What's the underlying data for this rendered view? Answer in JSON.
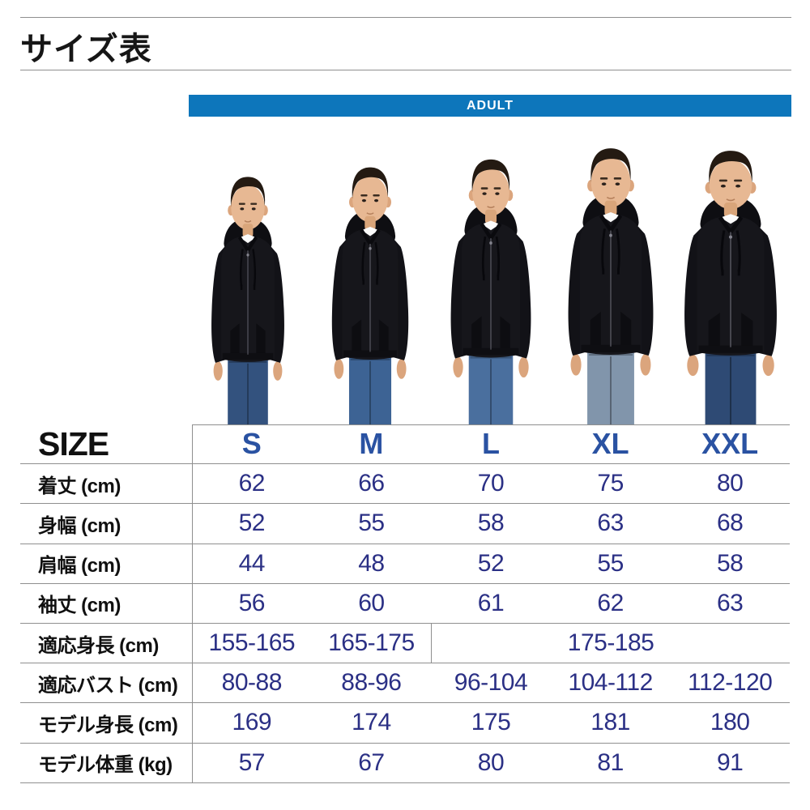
{
  "page": {
    "title": "サイズ表"
  },
  "banner": {
    "label": "ADULT",
    "bg_color": "#0d76bb",
    "text_color": "#ffffff"
  },
  "colors": {
    "size_header_blue": "#2a52a2",
    "value_navy": "#2b3085",
    "grid_line": "#8f8f8f"
  },
  "chart_data": {
    "type": "table",
    "title": "サイズ表",
    "group": "ADULT",
    "columns": [
      "S",
      "M",
      "L",
      "XL",
      "XXL"
    ],
    "rows": [
      {
        "label": "着丈 (cm)",
        "cells": [
          {
            "text": "62",
            "span": 1
          },
          {
            "text": "66",
            "span": 1
          },
          {
            "text": "70",
            "span": 1
          },
          {
            "text": "75",
            "span": 1
          },
          {
            "text": "80",
            "span": 1
          }
        ]
      },
      {
        "label": "身幅 (cm)",
        "cells": [
          {
            "text": "52",
            "span": 1
          },
          {
            "text": "55",
            "span": 1
          },
          {
            "text": "58",
            "span": 1
          },
          {
            "text": "63",
            "span": 1
          },
          {
            "text": "68",
            "span": 1
          }
        ]
      },
      {
        "label": "肩幅 (cm)",
        "cells": [
          {
            "text": "44",
            "span": 1
          },
          {
            "text": "48",
            "span": 1
          },
          {
            "text": "52",
            "span": 1
          },
          {
            "text": "55",
            "span": 1
          },
          {
            "text": "58",
            "span": 1
          }
        ]
      },
      {
        "label": "袖丈 (cm)",
        "cells": [
          {
            "text": "56",
            "span": 1
          },
          {
            "text": "60",
            "span": 1
          },
          {
            "text": "61",
            "span": 1
          },
          {
            "text": "62",
            "span": 1
          },
          {
            "text": "63",
            "span": 1
          }
        ]
      },
      {
        "label": "適応身長 (cm)",
        "cells": [
          {
            "text": "155-165",
            "span": 1
          },
          {
            "text": "165-175",
            "span": 1
          },
          {
            "text": "175-185",
            "span": 3,
            "divider": true
          }
        ]
      },
      {
        "label": "適応バスト (cm)",
        "cells": [
          {
            "text": "80-88",
            "span": 1
          },
          {
            "text": "88-96",
            "span": 1
          },
          {
            "text": "96-104",
            "span": 1
          },
          {
            "text": "104-112",
            "span": 1
          },
          {
            "text": "112-120",
            "span": 1
          }
        ]
      },
      {
        "label": "モデル身長 (cm)",
        "cells": [
          {
            "text": "169",
            "span": 1
          },
          {
            "text": "174",
            "span": 1
          },
          {
            "text": "175",
            "span": 1
          },
          {
            "text": "181",
            "span": 1
          },
          {
            "text": "180",
            "span": 1
          }
        ]
      },
      {
        "label": "モデル体重 (kg)",
        "cells": [
          {
            "text": "57",
            "span": 1
          },
          {
            "text": "67",
            "span": 1
          },
          {
            "text": "80",
            "span": 1
          },
          {
            "text": "81",
            "span": 1
          },
          {
            "text": "91",
            "span": 1
          }
        ]
      }
    ],
    "header_label": "SIZE"
  }
}
